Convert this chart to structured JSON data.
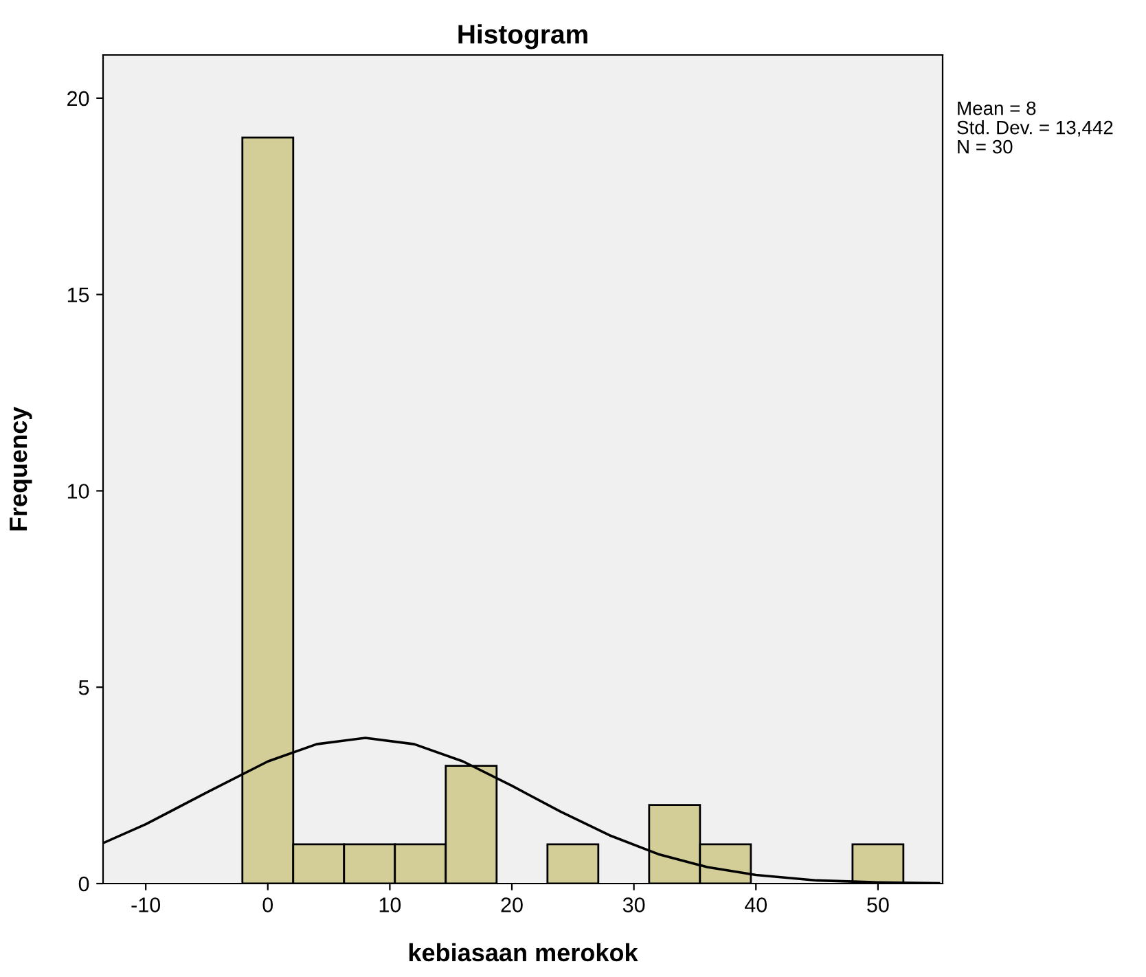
{
  "chart_data": {
    "type": "histogram",
    "title": "Histogram",
    "xlabel": "kebiasaan merokok",
    "ylabel": "Frequency",
    "bins": [
      -2.083,
      2.083,
      6.25,
      10.417,
      14.583,
      18.75,
      22.917,
      27.083,
      31.25,
      35.417,
      39.583,
      43.75,
      47.917,
      52.083
    ],
    "values": [
      19,
      1,
      1,
      1,
      3,
      0,
      1,
      0,
      2,
      1,
      0,
      0,
      1
    ],
    "color": "#d3ce97",
    "series": [
      {
        "type": "line",
        "color": "#000000",
        "x": [
          -13.5,
          -10,
          -5,
          0,
          4,
          8,
          12,
          16,
          20,
          24,
          28,
          32,
          36,
          40,
          45,
          50,
          55
        ],
        "values": [
          1.03,
          1.51,
          2.32,
          3.11,
          3.55,
          3.71,
          3.55,
          3.11,
          2.49,
          1.83,
          1.23,
          0.75,
          0.42,
          0.22,
          0.08,
          0.03,
          0.01
        ]
      }
    ],
    "xlim": [
      -13.5,
      55.3
    ],
    "ylim": [
      0,
      21.1
    ],
    "xticks": [
      -10,
      0,
      10,
      20,
      30,
      40,
      50
    ],
    "yticks": [
      0,
      5,
      10,
      15,
      20
    ],
    "grid": false,
    "annotations": [
      "Mean = 8",
      "Std. Dev. = 13,442",
      "N = 30"
    ]
  }
}
